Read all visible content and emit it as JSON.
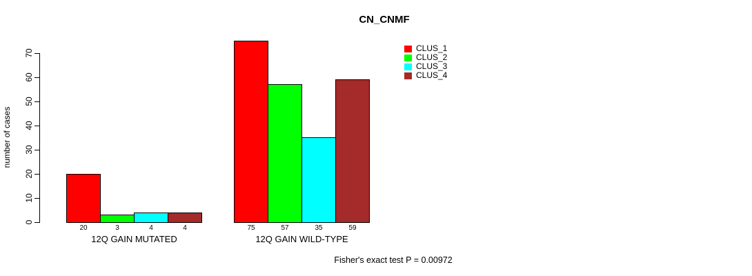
{
  "chart_data": {
    "type": "bar",
    "title": "CN_CNMF",
    "ylabel": "number of cases",
    "xlabel": "",
    "categories": [
      "12Q GAIN MUTATED",
      "12Q GAIN WILD-TYPE"
    ],
    "series": [
      {
        "name": "CLUS_1",
        "color": "#FF0000",
        "values": [
          20,
          75
        ]
      },
      {
        "name": "CLUS_2",
        "color": "#00FF00",
        "values": [
          3,
          57
        ]
      },
      {
        "name": "CLUS_3",
        "color": "#00FFFF",
        "values": [
          4,
          35
        ]
      },
      {
        "name": "CLUS_4",
        "color": "#A52A2A",
        "values": [
          4,
          59
        ]
      }
    ],
    "bar_value_labels_shown": true,
    "yticks": [
      0,
      10,
      20,
      30,
      40,
      50,
      60,
      70
    ],
    "ylim": [
      0,
      75
    ],
    "grid": false,
    "legend_position": "top-right",
    "annotation": "Fisher's exact test P = 0.00972"
  },
  "colors": {
    "background": "#FFFFFF",
    "axis": "#000000",
    "text": "#000000",
    "bar_border": "#000000"
  }
}
